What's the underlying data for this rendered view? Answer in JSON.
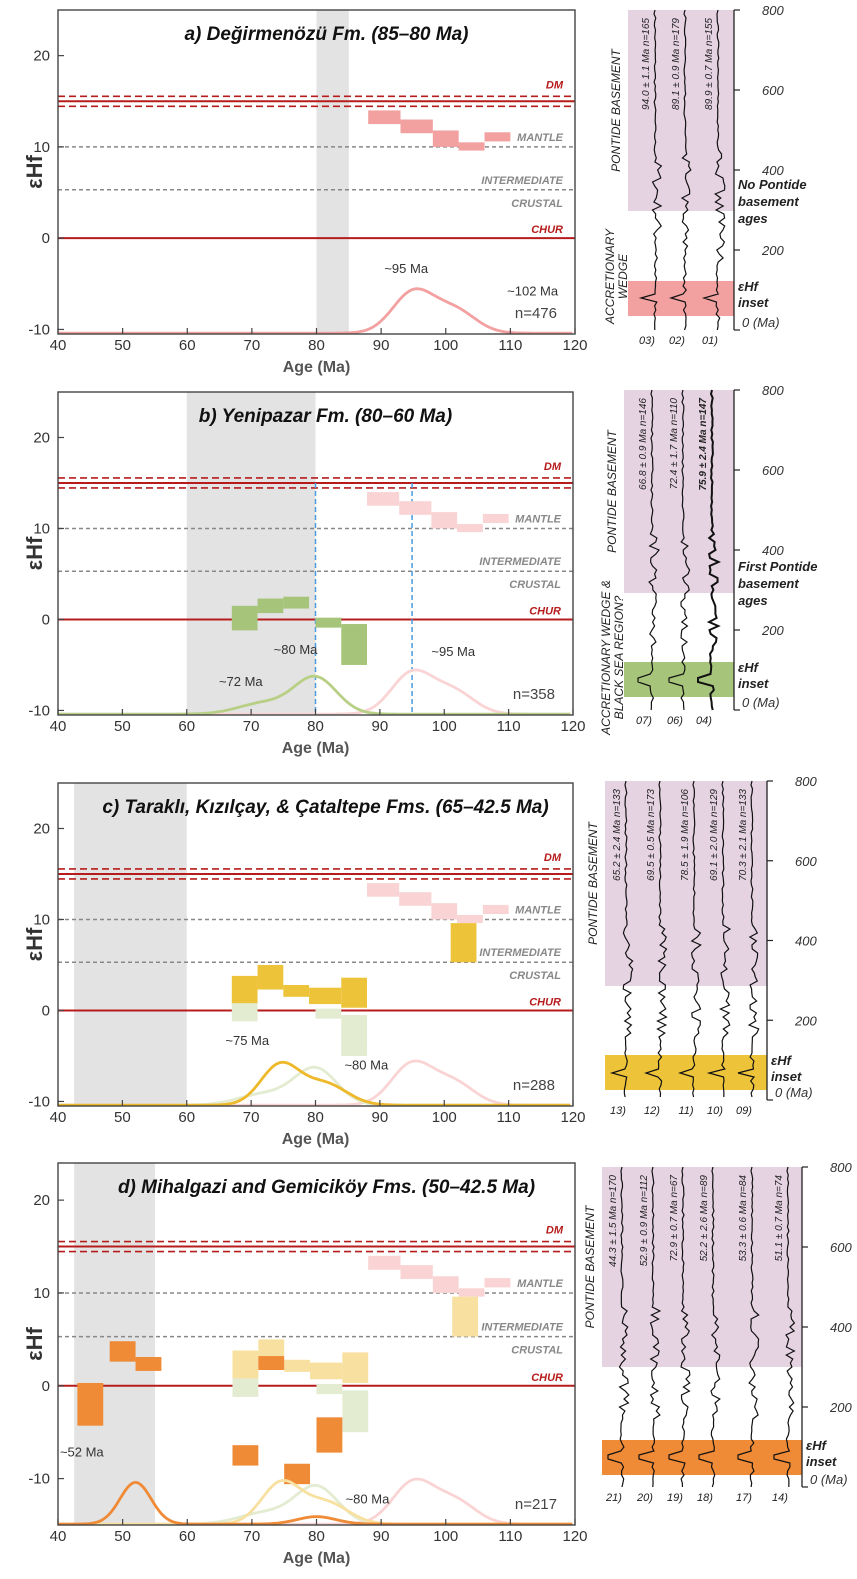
{
  "chart_data": [
    {
      "type": "scatter",
      "panel": "a",
      "title": "a) Değirmenözü Fm. (85–80 Ma)",
      "xlabel": "Age (Ma)",
      "ylabel": "εHf",
      "xlim": [
        40,
        120
      ],
      "ylim": [
        -10.5,
        25
      ],
      "x_ticks": [
        40,
        50,
        60,
        70,
        80,
        90,
        100,
        110,
        120
      ],
      "y_ticks": [
        -10,
        0,
        10,
        20
      ],
      "reference_lines": [
        {
          "name": "DM",
          "y": 15,
          "style": "solid-dashed-band",
          "color": "#b71c1c"
        },
        {
          "name": "MANTLE",
          "y": 10,
          "style": "dotted",
          "color": "#888888"
        },
        {
          "name": "INTERMEDIATE",
          "y": 5.3,
          "style": "dotted",
          "color": "#888888"
        },
        {
          "name": "CRUSTAL",
          "y": 5.3,
          "style": "label-below",
          "color": "#888888"
        },
        {
          "name": "CHUR",
          "y": 0,
          "style": "solid",
          "color": "#b71c1c"
        }
      ],
      "depositional_window": [
        80,
        85
      ],
      "boxes": [
        {
          "x0": 88,
          "x1": 93,
          "y0": 12.5,
          "y1": 14,
          "color": "#f2a0a0"
        },
        {
          "x0": 93,
          "x1": 98,
          "y0": 11.5,
          "y1": 13,
          "color": "#f2a0a0"
        },
        {
          "x0": 98,
          "x1": 102,
          "y0": 10,
          "y1": 11.8,
          "color": "#f2a0a0"
        },
        {
          "x0": 102,
          "x1": 106,
          "y0": 9.6,
          "y1": 10.5,
          "color": "#f2a0a0"
        },
        {
          "x0": 106,
          "x1": 110,
          "y0": 10.6,
          "y1": 11.6,
          "color": "#f2a0a0"
        }
      ],
      "kde": [
        {
          "color": "#f2a0a0",
          "peaks": [
            {
              "age": 95,
              "height": 4.5,
              "sigma": 3.2
            },
            {
              "age": 101.5,
              "height": 2.4,
              "sigma": 3.2
            }
          ]
        }
      ],
      "annotations": [
        {
          "text": "~95 Ma",
          "x": 90.5,
          "y": -3.8
        },
        {
          "text": "~102 Ma",
          "x": 109.5,
          "y": -6.3
        }
      ],
      "n_label": "n=476",
      "side": {
        "sample_ids": [
          "03)",
          "02)",
          "01)"
        ],
        "sample_labels": [
          "94.0 ± 1.1 Ma n=165",
          "89.1 ± 0.9 Ma n=179",
          "89.9 ± 0.7 Ma n=155"
        ],
        "bold_label_index": -1,
        "left_label": "PONTIDE BASEMENT",
        "left_label_lower": "ACCRETIONARY WEDGE",
        "age_ticks": [
          "800",
          "600",
          "400",
          "200",
          "0 (Ma)"
        ],
        "note": [
          "No Pontide",
          "basement",
          "ages"
        ],
        "inset_label": [
          "εHf",
          "inset"
        ],
        "inset_color": "#f2a0a0"
      }
    },
    {
      "type": "scatter",
      "panel": "b",
      "title": "b) Yenipazar Fm. (80–60 Ma)",
      "xlabel": "Age (Ma)",
      "ylabel": "εHf",
      "xlim": [
        40,
        120
      ],
      "ylim": [
        -10.5,
        25
      ],
      "x_ticks": [
        40,
        50,
        60,
        70,
        80,
        90,
        100,
        110,
        120
      ],
      "y_ticks": [
        -10,
        0,
        10,
        20
      ],
      "reference_lines": [
        {
          "name": "DM",
          "y": 15,
          "style": "solid-dashed-band",
          "color": "#b71c1c"
        },
        {
          "name": "MANTLE",
          "y": 10,
          "style": "dotted",
          "color": "#888888"
        },
        {
          "name": "INTERMEDIATE",
          "y": 5.3,
          "style": "dotted",
          "color": "#888888"
        },
        {
          "name": "CRUSTAL",
          "y": 5.3,
          "style": "label-below",
          "color": "#888888"
        },
        {
          "name": "CHUR",
          "y": 0,
          "style": "solid",
          "color": "#b71c1c"
        }
      ],
      "depositional_window": [
        60,
        80
      ],
      "guide_lines": [
        80,
        95
      ],
      "boxes": [
        {
          "x0": 88,
          "x1": 93,
          "y0": 12.5,
          "y1": 14,
          "color": "#fad4d4"
        },
        {
          "x0": 93,
          "x1": 98,
          "y0": 11.5,
          "y1": 13,
          "color": "#fad4d4"
        },
        {
          "x0": 98,
          "x1": 102,
          "y0": 10,
          "y1": 11.8,
          "color": "#fad4d4"
        },
        {
          "x0": 102,
          "x1": 106,
          "y0": 9.6,
          "y1": 10.5,
          "color": "#fad4d4"
        },
        {
          "x0": 106,
          "x1": 110,
          "y0": 10.6,
          "y1": 11.6,
          "color": "#fad4d4"
        },
        {
          "x0": 67,
          "x1": 71,
          "y0": -1.2,
          "y1": 1.5,
          "color": "#a7c57a"
        },
        {
          "x0": 71,
          "x1": 75,
          "y0": 0.7,
          "y1": 2.3,
          "color": "#a7c57a"
        },
        {
          "x0": 75,
          "x1": 79,
          "y0": 1.2,
          "y1": 2.5,
          "color": "#a7c57a"
        },
        {
          "x0": 80,
          "x1": 84,
          "y0": -0.9,
          "y1": 0.2,
          "color": "#a7c57a"
        },
        {
          "x0": 84,
          "x1": 88,
          "y0": -5,
          "y1": -0.5,
          "color": "#a7c57a"
        }
      ],
      "kde": [
        {
          "color": "#fad4d4",
          "peaks": [
            {
              "age": 95,
              "height": 4.5,
              "sigma": 3.2
            },
            {
              "age": 101.5,
              "height": 2.4,
              "sigma": 3.2
            }
          ]
        },
        {
          "color": "#b8cf86",
          "peaks": [
            {
              "age": 72,
              "height": 1.2,
              "sigma": 4.0
            },
            {
              "age": 80,
              "height": 4.0,
              "sigma": 3.3
            }
          ]
        }
      ],
      "annotations": [
        {
          "text": "~80 Ma",
          "x": 73.5,
          "y": -3.8
        },
        {
          "text": "~72 Ma",
          "x": 65,
          "y": -7.3
        },
        {
          "text": "~95 Ma",
          "x": 98,
          "y": -4
        }
      ],
      "n_label": "n=358",
      "side": {
        "sample_ids": [
          "07)",
          "06)",
          "04)"
        ],
        "sample_labels": [
          "66.8 ± 0.9 Ma n=146",
          "72.4 ± 1.7 Ma n=110",
          "75.9 ± 2.4 Ma n=147"
        ],
        "bold_label_index": 2,
        "left_label": "PONTIDE BASEMENT",
        "left_label_lower": "ACCRETIONARY WEDGE & BLACK SEA REGION?",
        "age_ticks": [
          "800",
          "600",
          "400",
          "200",
          "0 (Ma)"
        ],
        "note": [
          "First Pontide",
          "basement",
          "ages"
        ],
        "inset_label": [
          "εHf",
          "inset"
        ],
        "inset_color": "#a7c57a"
      }
    },
    {
      "type": "scatter",
      "panel": "c",
      "title": "c) Taraklı, Kızılçay, & Çataltepe Fms. (65–42.5 Ma)",
      "xlabel": "Age (Ma)",
      "ylabel": "εHf",
      "xlim": [
        40,
        120
      ],
      "ylim": [
        -10.5,
        25
      ],
      "x_ticks": [
        40,
        50,
        60,
        70,
        80,
        90,
        100,
        110,
        120
      ],
      "y_ticks": [
        -10,
        0,
        10,
        20
      ],
      "reference_lines": [
        {
          "name": "DM",
          "y": 15,
          "style": "solid-dashed-band",
          "color": "#b71c1c"
        },
        {
          "name": "MANTLE",
          "y": 10,
          "style": "dotted",
          "color": "#888888"
        },
        {
          "name": "INTERMEDIATE",
          "y": 5.3,
          "style": "dotted",
          "color": "#888888"
        },
        {
          "name": "CRUSTAL",
          "y": 5.3,
          "style": "label-below",
          "color": "#888888"
        },
        {
          "name": "CHUR",
          "y": 0,
          "style": "solid",
          "color": "#b71c1c"
        }
      ],
      "depositional_window": [
        42.5,
        60
      ],
      "boxes": [
        {
          "x0": 88,
          "x1": 93,
          "y0": 12.5,
          "y1": 14,
          "color": "#fad4d4"
        },
        {
          "x0": 93,
          "x1": 98,
          "y0": 11.5,
          "y1": 13,
          "color": "#fad4d4"
        },
        {
          "x0": 98,
          "x1": 102,
          "y0": 10,
          "y1": 11.8,
          "color": "#fad4d4"
        },
        {
          "x0": 102,
          "x1": 106,
          "y0": 9.6,
          "y1": 10.5,
          "color": "#fad4d4"
        },
        {
          "x0": 106,
          "x1": 110,
          "y0": 10.6,
          "y1": 11.6,
          "color": "#fad4d4"
        },
        {
          "x0": 67,
          "x1": 71,
          "y0": -1.2,
          "y1": 1.5,
          "color": "#e3ebd1"
        },
        {
          "x0": 80,
          "x1": 84,
          "y0": -0.9,
          "y1": 0.2,
          "color": "#e3ebd1"
        },
        {
          "x0": 84,
          "x1": 88,
          "y0": -5,
          "y1": -0.5,
          "color": "#e3ebd1"
        },
        {
          "x0": 67,
          "x1": 71,
          "y0": 0.8,
          "y1": 3.8,
          "color": "#edc33a"
        },
        {
          "x0": 71,
          "x1": 75,
          "y0": 2.3,
          "y1": 5.0,
          "color": "#edc33a"
        },
        {
          "x0": 75,
          "x1": 79,
          "y0": 1.5,
          "y1": 2.8,
          "color": "#edc33a"
        },
        {
          "x0": 79,
          "x1": 84,
          "y0": 0.7,
          "y1": 2.5,
          "color": "#edc33a"
        },
        {
          "x0": 84,
          "x1": 88,
          "y0": 0.3,
          "y1": 3.6,
          "color": "#edc33a"
        },
        {
          "x0": 101,
          "x1": 105,
          "y0": 5.3,
          "y1": 9.6,
          "color": "#edc33a"
        }
      ],
      "kde": [
        {
          "color": "#fad4d4",
          "peaks": [
            {
              "age": 95,
              "height": 4.5,
              "sigma": 3.2
            },
            {
              "age": 101.5,
              "height": 2.4,
              "sigma": 3.2
            }
          ]
        },
        {
          "color": "#e3ebd1",
          "peaks": [
            {
              "age": 72,
              "height": 1.2,
              "sigma": 4.0
            },
            {
              "age": 80,
              "height": 4.0,
              "sigma": 3.3
            }
          ]
        },
        {
          "color": "#edb92a",
          "peaks": [
            {
              "age": 74.5,
              "height": 4.4,
              "sigma": 3.0
            },
            {
              "age": 81.5,
              "height": 2.3,
              "sigma": 3.4
            }
          ]
        }
      ],
      "annotations": [
        {
          "text": "~75 Ma",
          "x": 66,
          "y": -3.8
        },
        {
          "text": "~80 Ma",
          "x": 84.5,
          "y": -6.5
        }
      ],
      "n_label": "n=288",
      "side": {
        "sample_ids": [
          "13)",
          "12)",
          "11)",
          "10)",
          "09)"
        ],
        "sample_labels": [
          "65.2 ± 2.4 Ma n=133",
          "69.5 ± 0.5 Ma n=173",
          "78.5 ± 1.9 Ma n=106",
          "69.1 ± 2.0 Ma n=129",
          "70.3 ± 2.1 Ma n=133"
        ],
        "bold_label_index": -1,
        "left_label": "PONTIDE BASEMENT",
        "left_label_lower": "",
        "age_ticks": [
          "800",
          "600",
          "400",
          "200",
          "0 (Ma)"
        ],
        "note": [],
        "inset_label": [
          "εHf",
          "inset"
        ],
        "inset_color": "#edc33a"
      }
    },
    {
      "type": "scatter",
      "panel": "d",
      "title": "d) Mihalgazi and Gemiciköy Fms. (50–42.5 Ma)",
      "xlabel": "Age (Ma)",
      "ylabel": "εHf",
      "xlim": [
        40,
        120
      ],
      "ylim": [
        -15,
        24
      ],
      "x_ticks": [
        40,
        50,
        60,
        70,
        80,
        90,
        100,
        110,
        120
      ],
      "y_ticks": [
        -10,
        0,
        10,
        20
      ],
      "reference_lines": [
        {
          "name": "DM",
          "y": 15,
          "style": "solid-dashed-band",
          "color": "#b71c1c"
        },
        {
          "name": "MANTLE",
          "y": 10,
          "style": "dotted",
          "color": "#888888"
        },
        {
          "name": "INTERMEDIATE",
          "y": 5.3,
          "style": "dotted",
          "color": "#888888"
        },
        {
          "name": "CRUSTAL",
          "y": 5.3,
          "style": "label-below",
          "color": "#888888"
        },
        {
          "name": "CHUR",
          "y": 0,
          "style": "solid",
          "color": "#b71c1c"
        }
      ],
      "depositional_window": [
        42.5,
        55
      ],
      "boxes": [
        {
          "x0": 88,
          "x1": 93,
          "y0": 12.5,
          "y1": 14,
          "color": "#fad4d4"
        },
        {
          "x0": 93,
          "x1": 98,
          "y0": 11.5,
          "y1": 13,
          "color": "#fad4d4"
        },
        {
          "x0": 98,
          "x1": 102,
          "y0": 10,
          "y1": 11.8,
          "color": "#fad4d4"
        },
        {
          "x0": 102,
          "x1": 106,
          "y0": 9.6,
          "y1": 10.5,
          "color": "#fad4d4"
        },
        {
          "x0": 106,
          "x1": 110,
          "y0": 10.6,
          "y1": 11.6,
          "color": "#fad4d4"
        },
        {
          "x0": 67,
          "x1": 71,
          "y0": -1.2,
          "y1": 1.5,
          "color": "#e3ebd1"
        },
        {
          "x0": 80,
          "x1": 84,
          "y0": -0.9,
          "y1": 0.2,
          "color": "#e3ebd1"
        },
        {
          "x0": 84,
          "x1": 88,
          "y0": -5,
          "y1": -0.5,
          "color": "#e3ebd1"
        },
        {
          "x0": 67,
          "x1": 71,
          "y0": 0.8,
          "y1": 3.8,
          "color": "#f7e0a0"
        },
        {
          "x0": 71,
          "x1": 75,
          "y0": 2.3,
          "y1": 5.0,
          "color": "#f7e0a0"
        },
        {
          "x0": 75,
          "x1": 79,
          "y0": 1.5,
          "y1": 2.8,
          "color": "#f7e0a0"
        },
        {
          "x0": 79,
          "x1": 84,
          "y0": 0.7,
          "y1": 2.5,
          "color": "#f7e0a0"
        },
        {
          "x0": 84,
          "x1": 88,
          "y0": 0.3,
          "y1": 3.6,
          "color": "#f7e0a0"
        },
        {
          "x0": 101,
          "x1": 105,
          "y0": 5.3,
          "y1": 9.6,
          "color": "#f7e0a0"
        },
        {
          "x0": 48,
          "x1": 52,
          "y0": 2.6,
          "y1": 4.8,
          "color": "#ef8a36"
        },
        {
          "x0": 52,
          "x1": 56,
          "y0": 1.6,
          "y1": 3.1,
          "color": "#ef8a36"
        },
        {
          "x0": 43,
          "x1": 47,
          "y0": -4.3,
          "y1": 0.3,
          "color": "#ef8a36"
        },
        {
          "x0": 71,
          "x1": 75,
          "y0": 1.7,
          "y1": 3.2,
          "color": "#ef8a36"
        },
        {
          "x0": 67,
          "x1": 71,
          "y0": -8.6,
          "y1": -6.4,
          "color": "#ef8a36"
        },
        {
          "x0": 75,
          "x1": 79,
          "y0": -10.6,
          "y1": -8.4,
          "color": "#ef8a36"
        },
        {
          "x0": 80,
          "x1": 84,
          "y0": -7.2,
          "y1": -3.4,
          "color": "#ef8a36"
        }
      ],
      "kde": [
        {
          "color": "#fad4d4",
          "peaks": [
            {
              "age": 95,
              "height": 4.5,
              "sigma": 3.2
            },
            {
              "age": 101.5,
              "height": 2.4,
              "sigma": 3.2
            }
          ]
        },
        {
          "color": "#e3ebd1",
          "peaks": [
            {
              "age": 72,
              "height": 1.2,
              "sigma": 4.0
            },
            {
              "age": 80,
              "height": 4.0,
              "sigma": 3.3
            }
          ]
        },
        {
          "color": "#f7e0a0",
          "peaks": [
            {
              "age": 74.5,
              "height": 4.4,
              "sigma": 3.0
            },
            {
              "age": 81.5,
              "height": 2.3,
              "sigma": 3.4
            }
          ]
        },
        {
          "color": "#ef8a36",
          "peaks": [
            {
              "age": 52,
              "height": 4.5,
              "sigma": 2.4
            },
            {
              "age": 80,
              "height": 0.8,
              "sigma": 3.0
            }
          ]
        }
      ],
      "annotations": [
        {
          "text": "~52 Ma",
          "x": 40.3,
          "y": -7.6
        },
        {
          "text": "~80 Ma",
          "x": 84.5,
          "y": -12.7
        }
      ],
      "n_label": "n=217",
      "side": {
        "sample_ids": [
          "21)",
          "20)",
          "19)",
          "18)",
          "17)",
          "14)"
        ],
        "sample_labels": [
          "44.3 ± 1.5 Ma n=170",
          "52.9 ± 0.9 Ma n=112",
          "72.9 ± 0.7 Ma n=67",
          "52.2 ± 2.6 Ma n=89",
          "53.3 ± 0.6 Ma n=84",
          "51.1 ± 0.7 Ma n=74"
        ],
        "bold_label_index": -1,
        "left_label": "PONTIDE BASEMENT",
        "left_label_lower": "",
        "age_ticks": [
          "800",
          "600",
          "400",
          "200",
          "0 (Ma)"
        ],
        "note": [],
        "inset_label": [
          "εHf",
          "inset"
        ],
        "inset_color": "#ef8a36"
      }
    }
  ]
}
